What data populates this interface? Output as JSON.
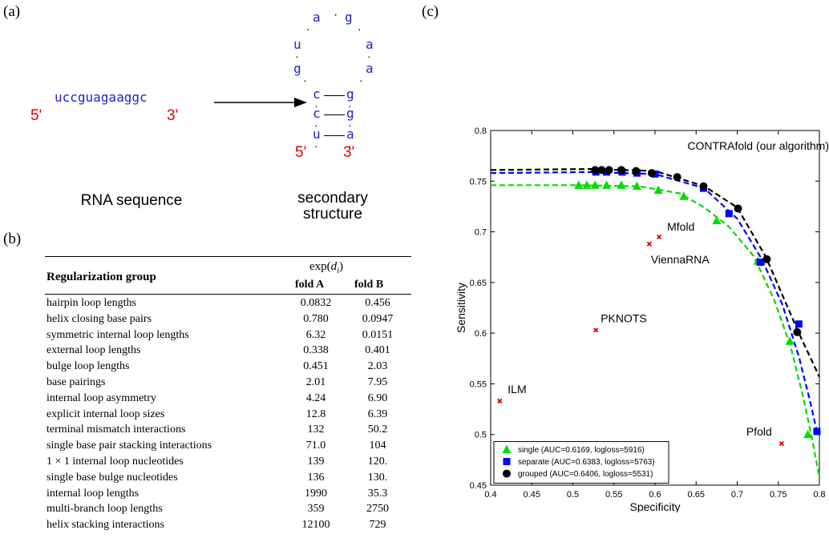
{
  "panel_a": {
    "label": "(a)",
    "sequence": "uccguagaaggc",
    "five_prime": "5'",
    "three_prime": "3'",
    "caption_left": "RNA sequence",
    "caption_right_line1": "secondary",
    "caption_right_line2": "structure",
    "structure": {
      "loop_top_left": "a",
      "loop_top_right": "g",
      "loop_left_1": "u",
      "loop_left_2": "g",
      "loop_right_1": "a",
      "loop_right_2": "a",
      "pairs": [
        {
          "left": "c",
          "right": "g"
        },
        {
          "left": "c",
          "right": "g"
        },
        {
          "left": "u",
          "right": "a"
        }
      ],
      "five_prime": "5'",
      "three_prime": "3'"
    }
  },
  "panel_b": {
    "label": "(b)",
    "header_group": "Regularization group",
    "header_exp": "exp(",
    "header_exp_var": "d",
    "header_exp_sub": "i",
    "header_exp_close": ")",
    "header_fold_a": "fold A",
    "header_fold_b": "fold B",
    "rows": [
      {
        "group": "hairpin loop lengths",
        "a": "0.0832",
        "b": "0.456"
      },
      {
        "group": "helix closing base pairs",
        "a": "0.780",
        "b": "0.0947"
      },
      {
        "group": "symmetric internal loop lengths",
        "a": "6.32",
        "b": "0.0151"
      },
      {
        "group": "external loop lengths",
        "a": "0.338",
        "b": "0.401"
      },
      {
        "group": "bulge loop lengths",
        "a": "0.451",
        "b": "2.03"
      },
      {
        "group": "base pairings",
        "a": "2.01",
        "b": "7.95"
      },
      {
        "group": "internal loop asymmetry",
        "a": "4.24",
        "b": "6.90"
      },
      {
        "group": "explicit internal loop sizes",
        "a": "12.8",
        "b": "6.39"
      },
      {
        "group": "terminal mismatch interactions",
        "a": "132",
        "b": "50.2"
      },
      {
        "group": "single base pair stacking interactions",
        "a": "71.0",
        "b": "104"
      },
      {
        "group": "1 × 1 internal loop nucleotides",
        "a": "139",
        "b": "120."
      },
      {
        "group": "single base bulge nucleotides",
        "a": "136",
        "b": "130."
      },
      {
        "group": "internal loop lengths",
        "a": "1990",
        "b": "35.3"
      },
      {
        "group": "multi-branch loop lengths",
        "a": "359",
        "b": "2750"
      },
      {
        "group": "helix stacking interactions",
        "a": "12100",
        "b": "729"
      }
    ]
  },
  "panel_c": {
    "label": "(c)"
  },
  "chart_data": {
    "type": "line",
    "xlabel": "Specificity",
    "ylabel": "Sensitivity",
    "xlim": [
      0.4,
      0.8
    ],
    "ylim": [
      0.45,
      0.8
    ],
    "xticks": [
      "0.4",
      "0.45",
      "0.5",
      "0.55",
      "0.6",
      "0.65",
      "0.7",
      "0.75",
      "0.8"
    ],
    "yticks": [
      "0.45",
      "0.5",
      "0.55",
      "0.6",
      "0.65",
      "0.7",
      "0.75",
      "0.8"
    ],
    "grid": false,
    "legend_placement": "bottom-left",
    "series": [
      {
        "name": "single (AUC=0.6169, logloss=5916)",
        "color": "#00dd00",
        "marker": "triangle",
        "curve": [
          [
            0.4,
            0.746
          ],
          [
            0.5,
            0.746
          ],
          [
            0.58,
            0.745
          ],
          [
            0.63,
            0.738
          ],
          [
            0.66,
            0.724
          ],
          [
            0.69,
            0.705
          ],
          [
            0.72,
            0.676
          ],
          [
            0.745,
            0.633
          ],
          [
            0.765,
            0.587
          ],
          [
            0.78,
            0.538
          ],
          [
            0.79,
            0.5
          ],
          [
            0.8,
            0.458
          ]
        ],
        "points": [
          [
            0.507,
            0.746
          ],
          [
            0.517,
            0.746
          ],
          [
            0.527,
            0.746
          ],
          [
            0.541,
            0.746
          ],
          [
            0.559,
            0.746
          ],
          [
            0.578,
            0.745
          ],
          [
            0.604,
            0.741
          ],
          [
            0.635,
            0.735
          ],
          [
            0.675,
            0.711
          ],
          [
            0.725,
            0.671
          ],
          [
            0.764,
            0.592
          ],
          [
            0.786,
            0.5
          ]
        ]
      },
      {
        "name": "separate (AUC=0.6383, logloss=5763)",
        "color": "#0000ff",
        "marker": "square",
        "curve": [
          [
            0.4,
            0.758
          ],
          [
            0.52,
            0.759
          ],
          [
            0.6,
            0.757
          ],
          [
            0.66,
            0.743
          ],
          [
            0.7,
            0.713
          ],
          [
            0.73,
            0.673
          ],
          [
            0.755,
            0.628
          ],
          [
            0.775,
            0.577
          ],
          [
            0.788,
            0.535
          ],
          [
            0.797,
            0.503
          ]
        ],
        "points": [
          [
            0.528,
            0.759
          ],
          [
            0.541,
            0.759
          ],
          [
            0.56,
            0.759
          ],
          [
            0.578,
            0.758
          ],
          [
            0.6,
            0.757
          ],
          [
            0.659,
            0.743
          ],
          [
            0.69,
            0.718
          ],
          [
            0.728,
            0.67
          ],
          [
            0.775,
            0.609
          ],
          [
            0.797,
            0.503
          ]
        ]
      },
      {
        "name": "grouped (AUC=0.6406, logloss=5531)",
        "color": "#000000",
        "marker": "circle",
        "curve": [
          [
            0.4,
            0.761
          ],
          [
            0.52,
            0.762
          ],
          [
            0.6,
            0.76
          ],
          [
            0.66,
            0.745
          ],
          [
            0.7,
            0.724
          ],
          [
            0.735,
            0.675
          ],
          [
            0.775,
            0.6
          ],
          [
            0.8,
            0.557
          ]
        ],
        "points": [
          [
            0.527,
            0.761
          ],
          [
            0.535,
            0.761
          ],
          [
            0.544,
            0.761
          ],
          [
            0.559,
            0.761
          ],
          [
            0.577,
            0.76
          ],
          [
            0.596,
            0.758
          ],
          [
            0.627,
            0.754
          ],
          [
            0.659,
            0.745
          ],
          [
            0.701,
            0.723
          ],
          [
            0.736,
            0.673
          ],
          [
            0.773,
            0.601
          ]
        ]
      }
    ],
    "other_methods": {
      "color": "#e00000",
      "marker": "x",
      "points": [
        {
          "name": "CONTRAfold (our algorithm)",
          "x": null,
          "y": null
        },
        {
          "name": "Mfold",
          "x": 0.605,
          "y": 0.695
        },
        {
          "name": "ViennaRNA",
          "x": 0.593,
          "y": 0.688
        },
        {
          "name": "PKNOTS",
          "x": 0.528,
          "y": 0.603
        },
        {
          "name": "ILM",
          "x": 0.411,
          "y": 0.533
        },
        {
          "name": "Pfold",
          "x": 0.754,
          "y": 0.491
        }
      ]
    }
  }
}
